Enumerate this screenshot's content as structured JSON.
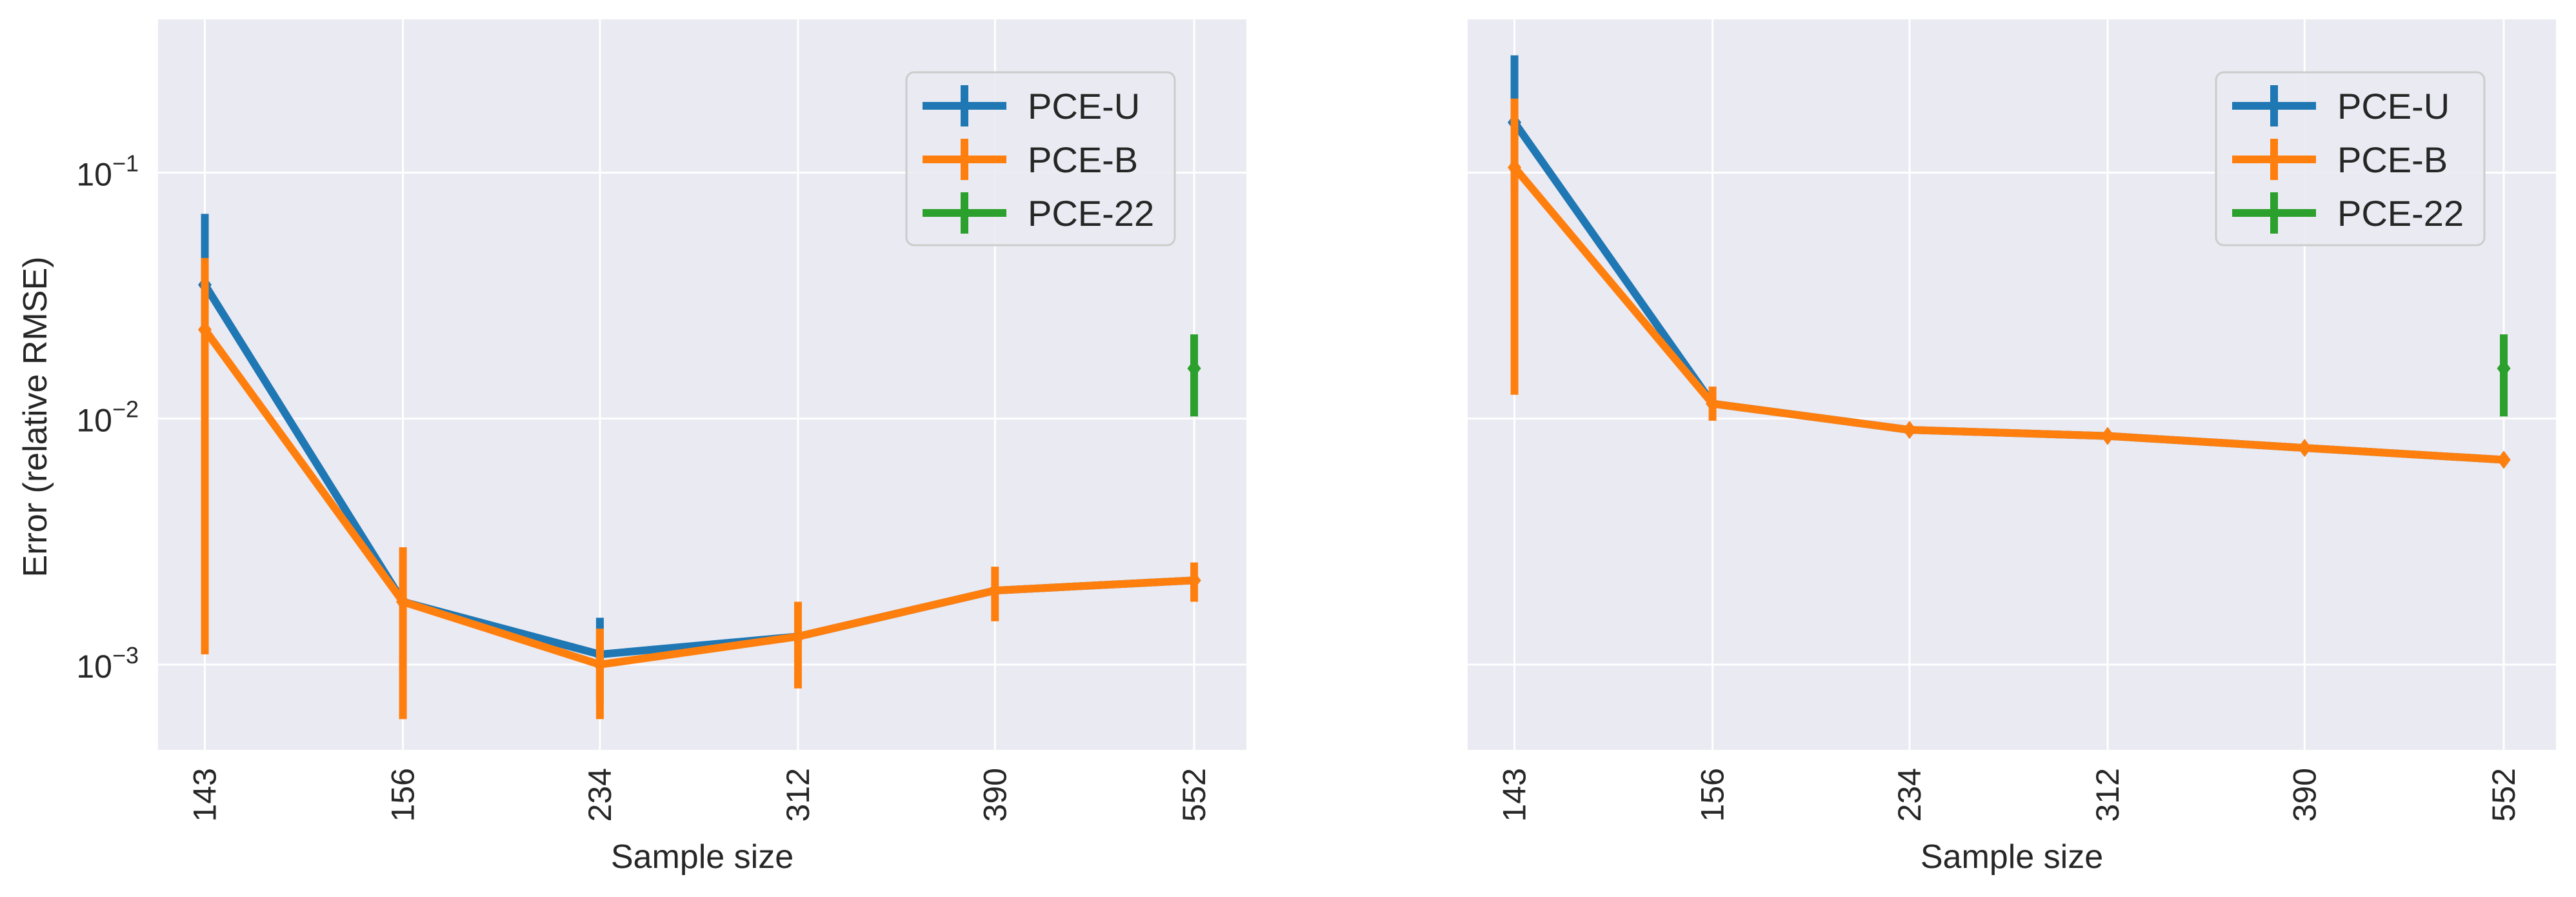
{
  "chart_data": [
    {
      "type": "line",
      "title": "",
      "xlabel": "Sample size",
      "ylabel": "Error (relative RMSE)",
      "y_scale": "log",
      "ylim": [
        0.00045,
        0.42
      ],
      "y_ticks": [
        {
          "value": 0.001,
          "base": "10",
          "exp": "−3"
        },
        {
          "value": 0.01,
          "base": "10",
          "exp": "−2"
        },
        {
          "value": 0.1,
          "base": "10",
          "exp": "−1"
        }
      ],
      "categories": [
        "143",
        "156",
        "234",
        "312",
        "390",
        "552"
      ],
      "grid": true,
      "legend_position": "top-right",
      "series": [
        {
          "name": "PCE-U",
          "color": "#1f77b4",
          "values": [
            0.035,
            0.0018,
            0.0011,
            0.0013,
            0.002,
            0.0022
          ],
          "err_low": [
            0.024,
            0.0018,
            0.0007,
            0.0013,
            0.002,
            0.0022
          ],
          "err_high": [
            0.068,
            0.0018,
            0.00155,
            0.0013,
            0.002,
            0.0022
          ]
        },
        {
          "name": "PCE-B",
          "color": "#ff7f0e",
          "values": [
            0.023,
            0.0018,
            0.001,
            0.0013,
            0.002,
            0.0022
          ],
          "err_low": [
            0.0011,
            0.0006,
            0.0006,
            0.0008,
            0.0015,
            0.0018
          ],
          "err_high": [
            0.045,
            0.003,
            0.0014,
            0.0018,
            0.0025,
            0.0026
          ]
        },
        {
          "name": "PCE-22",
          "color": "#2ca02c",
          "values": [
            null,
            null,
            null,
            null,
            null,
            0.016
          ],
          "err_low": [
            null,
            null,
            null,
            null,
            null,
            0.0102
          ],
          "err_high": [
            null,
            null,
            null,
            null,
            null,
            0.022
          ]
        }
      ]
    },
    {
      "type": "line",
      "title": "",
      "xlabel": "Sample size",
      "ylabel": "",
      "y_scale": "log",
      "ylim": [
        0.00045,
        0.42
      ],
      "categories": [
        "143",
        "156",
        "234",
        "312",
        "390",
        "552"
      ],
      "grid": true,
      "legend_position": "top-right",
      "series": [
        {
          "name": "PCE-U",
          "color": "#1f77b4",
          "values": [
            0.16,
            0.0115,
            0.009,
            0.0085,
            0.0076,
            0.0068
          ],
          "err_low": [
            0.085,
            0.0115,
            0.009,
            0.0085,
            0.0076,
            0.0068
          ],
          "err_high": [
            0.3,
            0.0115,
            0.009,
            0.0085,
            0.0076,
            0.0068
          ]
        },
        {
          "name": "PCE-B",
          "color": "#ff7f0e",
          "values": [
            0.105,
            0.0115,
            0.009,
            0.0085,
            0.0076,
            0.0068
          ],
          "err_low": [
            0.0125,
            0.0098,
            0.009,
            0.0085,
            0.0076,
            0.0068
          ],
          "err_high": [
            0.2,
            0.0135,
            0.009,
            0.0085,
            0.0076,
            0.0068
          ]
        },
        {
          "name": "PCE-22",
          "color": "#2ca02c",
          "values": [
            null,
            null,
            null,
            null,
            null,
            0.016
          ],
          "err_low": [
            null,
            null,
            null,
            null,
            null,
            0.0102
          ],
          "err_high": [
            null,
            null,
            null,
            null,
            null,
            0.022
          ]
        }
      ]
    }
  ]
}
